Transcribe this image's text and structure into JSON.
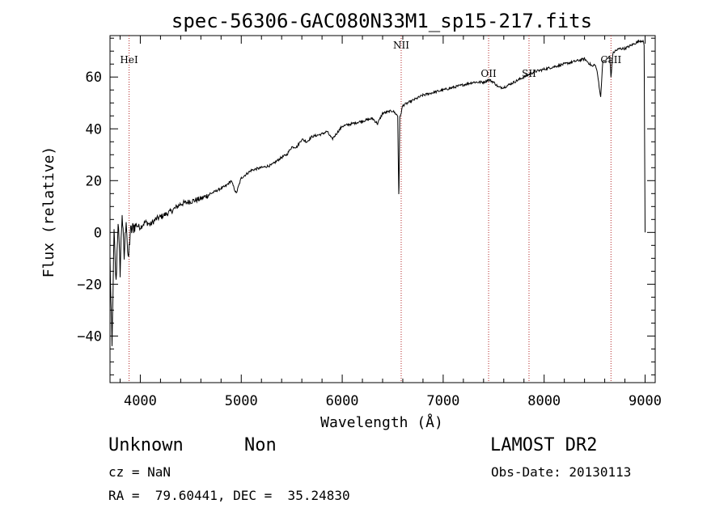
{
  "chart_data": {
    "type": "line",
    "title": "spec-56306-GAC080N33M1_sp15-217.fits",
    "xlabel": "Wavelength (Å)",
    "ylabel": "Flux (relative)",
    "xlim": [
      3700,
      9100
    ],
    "ylim": [
      -58,
      76
    ],
    "x_ticks": [
      4000,
      5000,
      6000,
      7000,
      8000,
      9000
    ],
    "y_ticks": [
      -40,
      -20,
      0,
      20,
      40,
      60
    ],
    "grid": false,
    "line_color": "#000000",
    "marker_color": "#b22222",
    "lines": [
      {
        "name": "HeI",
        "x": 3889
      },
      {
        "name": "NII",
        "x": 6584
      },
      {
        "name": "OII",
        "x": 7450
      },
      {
        "name": "SII",
        "x": 7850
      },
      {
        "name": "CaII",
        "x": 8662
      }
    ],
    "series": [
      {
        "x": [
          3700,
          3720,
          3740,
          3760,
          3780,
          3800,
          3820,
          3840,
          3860,
          3880,
          3900,
          3950,
          4000,
          4050,
          4100,
          4150,
          4200,
          4300,
          4400,
          4500,
          4600,
          4700,
          4800,
          4850,
          4900,
          4950,
          5000,
          5100,
          5200,
          5300,
          5400,
          5450,
          5500,
          5550,
          5600,
          5650,
          5700,
          5800,
          5850,
          5900,
          6000,
          6100,
          6200,
          6300,
          6350,
          6400,
          6500,
          6550,
          6560,
          6563,
          6570,
          6600,
          6700,
          6800,
          6900,
          7000,
          7100,
          7200,
          7300,
          7400,
          7450,
          7500,
          7550,
          7600,
          7650,
          7700,
          7750,
          7800,
          7900,
          8000,
          8100,
          8200,
          8300,
          8400,
          8480,
          8500,
          8520,
          8540,
          8560,
          8580,
          8600,
          8650,
          8662,
          8680,
          8700,
          8750,
          8800,
          8850,
          8900,
          8950,
          8980,
          8990,
          9000
        ],
        "y": [
          -10,
          -45,
          0,
          -20,
          5,
          -15,
          8,
          -10,
          6,
          -12,
          0,
          3,
          2,
          4,
          3,
          5,
          6,
          8,
          11,
          12,
          13,
          15,
          17,
          18,
          20,
          15,
          21,
          24,
          25,
          26,
          29,
          30,
          33,
          33,
          36,
          35,
          37,
          38,
          39,
          36,
          41,
          42,
          43,
          44,
          42,
          46,
          47,
          45,
          15,
          18,
          44,
          49,
          51,
          53,
          54,
          55,
          56,
          57,
          58,
          58,
          59,
          58,
          56,
          56,
          57,
          58,
          59,
          60,
          62,
          63,
          64,
          65,
          66,
          67,
          64,
          65,
          63,
          58,
          52,
          66,
          66,
          68,
          60,
          69,
          70,
          71,
          71,
          72,
          73,
          74,
          74,
          72,
          0
        ]
      }
    ]
  },
  "info": {
    "object": "Unknown",
    "class": "Non",
    "cz": "cz = NaN",
    "coords": "RA =  79.60441, DEC =  35.24830",
    "survey": "LAMOST DR2",
    "obs_date": "Obs-Date: 20130113"
  }
}
